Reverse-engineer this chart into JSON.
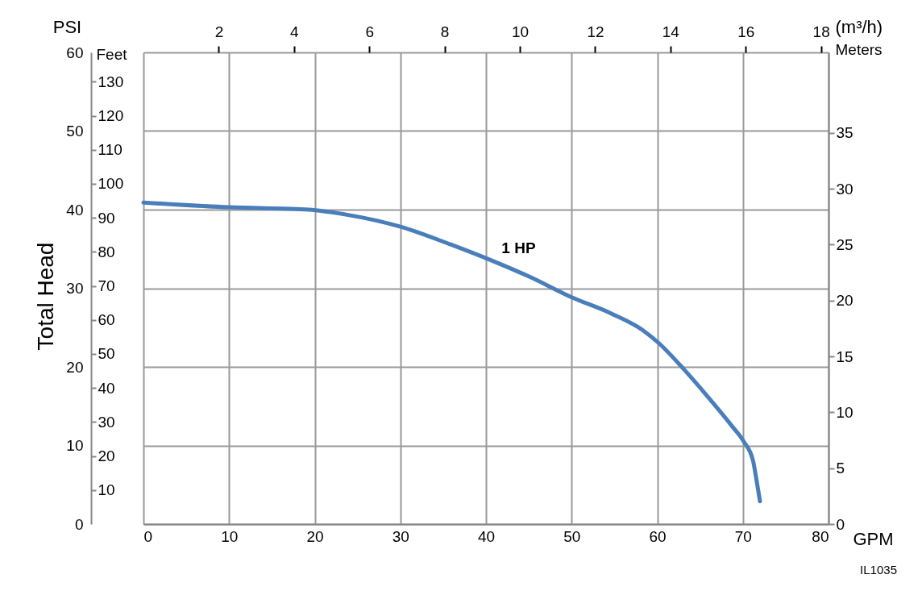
{
  "chart_data": {
    "type": "line",
    "xlabel": "GPM",
    "ylabel": "PSI",
    "y2label": "Meters",
    "y3label": "Feet",
    "x2label": "(m³/h)",
    "x": [
      0,
      10,
      19.3,
      23.5,
      30.1,
      35.8,
      40.5,
      45.2,
      49.9,
      54.6,
      58.4,
      60.2,
      63.1,
      65.9,
      68.7,
      70.1,
      71.2,
      71.5,
      72.0
    ],
    "series": [
      {
        "name": "1 HP",
        "color": "#4a7ebb",
        "values": [
          40.9,
          40.3,
          40.0,
          39.4,
          37.8,
          35.6,
          33.6,
          31.4,
          28.9,
          26.8,
          24.6,
          23.0,
          19.7,
          16.2,
          12.5,
          10.5,
          8.0,
          6.2,
          2.9
        ]
      }
    ],
    "xlim": [
      0,
      80
    ],
    "xticks": [
      0,
      10,
      20,
      30,
      40,
      50,
      60,
      70,
      80
    ],
    "ylim": [
      0,
      60
    ],
    "yticks": [
      0,
      10,
      20,
      30,
      40,
      50,
      60
    ],
    "y2lim": [
      0,
      42.2
    ],
    "y2ticks": [
      0,
      5,
      10,
      15,
      20,
      25,
      30,
      35
    ],
    "y3lim": [
      0,
      138.6
    ],
    "y3ticks": [
      10,
      20,
      30,
      40,
      50,
      60,
      70,
      80,
      90,
      100,
      110,
      120,
      130
    ],
    "x2lim": [
      0,
      18.2
    ],
    "x2ticks": [
      2,
      4,
      6,
      8,
      10,
      12,
      14,
      16,
      18
    ],
    "grid": true,
    "marker": "none",
    "line_style": "solid",
    "annotations": [
      "Total Head",
      "IL1035"
    ]
  }
}
